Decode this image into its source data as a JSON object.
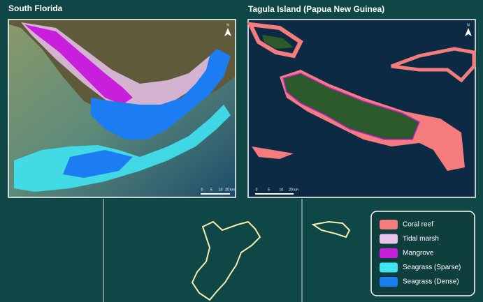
{
  "panels": [
    {
      "title": "South Florida",
      "north": "N",
      "scale": [
        "0",
        "5",
        "10",
        "20 km"
      ]
    },
    {
      "title": "Tagula Island (Papua New Guinea)",
      "north": "N",
      "scale": [
        "0",
        "5",
        "10",
        "20 km"
      ]
    }
  ],
  "legend": [
    {
      "label": "Coral reef",
      "color": "#f47c7c"
    },
    {
      "label": "Tidal marsh",
      "color": "#e9c3ec"
    },
    {
      "label": "Mangrove",
      "color": "#c71fdc"
    },
    {
      "label": "Seagrass (Sparse)",
      "color": "#3fe3f1"
    },
    {
      "label": "Seagrass (Dense)",
      "color": "#1c7df2"
    }
  ]
}
